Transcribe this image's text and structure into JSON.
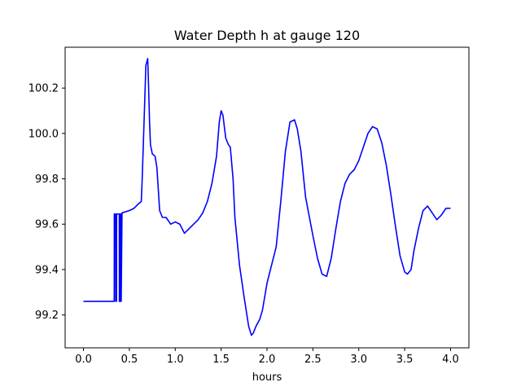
{
  "chart_data": {
    "type": "line",
    "title": "Water Depth h at gauge 120",
    "xlabel": "hours",
    "ylabel": "",
    "xlim": [
      -0.2,
      4.2
    ],
    "ylim": [
      99.055,
      100.38
    ],
    "xticks": [
      0.0,
      0.5,
      1.0,
      1.5,
      2.0,
      2.5,
      3.0,
      3.5,
      4.0
    ],
    "xtick_labels": [
      "0.0",
      "0.5",
      "1.0",
      "1.5",
      "2.0",
      "2.5",
      "3.0",
      "3.5",
      "4.0"
    ],
    "yticks": [
      99.2,
      99.4,
      99.6,
      99.8,
      100.0,
      100.2
    ],
    "ytick_labels": [
      "99.2",
      "99.4",
      "99.6",
      "99.8",
      "100.0",
      "100.2"
    ],
    "grid": false,
    "legend": "none",
    "series": [
      {
        "color": "#0000ff",
        "x": [
          0.0,
          0.1,
          0.2,
          0.3,
          0.335,
          0.336,
          0.35,
          0.351,
          0.36,
          0.361,
          0.39,
          0.391,
          0.4,
          0.401,
          0.41,
          0.411,
          0.42,
          0.5,
          0.55,
          0.6,
          0.63,
          0.64,
          0.66,
          0.68,
          0.7,
          0.71,
          0.72,
          0.73,
          0.75,
          0.78,
          0.8,
          0.83,
          0.86,
          0.9,
          0.95,
          1.0,
          1.05,
          1.1,
          1.15,
          1.2,
          1.25,
          1.3,
          1.35,
          1.4,
          1.45,
          1.48,
          1.5,
          1.52,
          1.55,
          1.58,
          1.6,
          1.63,
          1.65,
          1.7,
          1.75,
          1.8,
          1.83,
          1.85,
          1.88,
          1.92,
          1.95,
          2.0,
          2.05,
          2.1,
          2.15,
          2.2,
          2.25,
          2.3,
          2.33,
          2.37,
          2.42,
          2.5,
          2.55,
          2.6,
          2.65,
          2.7,
          2.75,
          2.8,
          2.85,
          2.9,
          2.95,
          3.0,
          3.05,
          3.1,
          3.15,
          3.2,
          3.25,
          3.3,
          3.35,
          3.4,
          3.45,
          3.5,
          3.53,
          3.57,
          3.6,
          3.65,
          3.7,
          3.75,
          3.8,
          3.85,
          3.9,
          3.95,
          4.0
        ],
        "y": [
          99.26,
          99.26,
          99.26,
          99.26,
          99.26,
          99.645,
          99.645,
          99.26,
          99.26,
          99.645,
          99.645,
          99.26,
          99.26,
          99.645,
          99.645,
          99.26,
          99.65,
          99.66,
          99.67,
          99.69,
          99.7,
          99.8,
          100.05,
          100.3,
          100.33,
          100.2,
          100.05,
          99.95,
          99.91,
          99.9,
          99.85,
          99.66,
          99.63,
          99.63,
          99.6,
          99.61,
          99.6,
          99.56,
          99.58,
          99.6,
          99.62,
          99.65,
          99.7,
          99.78,
          99.9,
          100.05,
          100.1,
          100.08,
          99.98,
          99.95,
          99.94,
          99.8,
          99.63,
          99.42,
          99.28,
          99.15,
          99.11,
          99.12,
          99.15,
          99.18,
          99.22,
          99.34,
          99.42,
          99.5,
          99.7,
          99.92,
          100.05,
          100.06,
          100.02,
          99.92,
          99.72,
          99.55,
          99.45,
          99.38,
          99.37,
          99.45,
          99.58,
          99.7,
          99.78,
          99.82,
          99.84,
          99.88,
          99.94,
          100.0,
          100.03,
          100.02,
          99.96,
          99.86,
          99.73,
          99.59,
          99.46,
          99.39,
          99.38,
          99.4,
          99.48,
          99.58,
          99.66,
          99.68,
          99.65,
          99.62,
          99.64,
          99.67,
          99.67
        ]
      }
    ]
  }
}
